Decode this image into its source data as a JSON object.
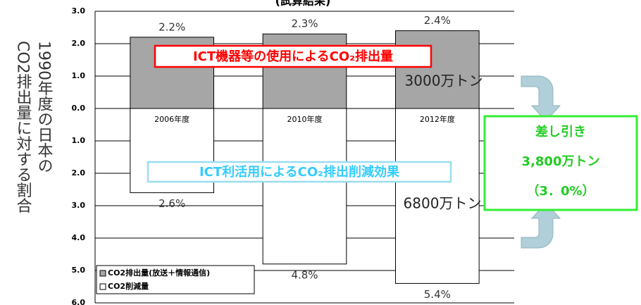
{
  "chart_data": {
    "type": "bar",
    "title": "(試算結果)",
    "y_label": [
      "1990年度の日本の",
      "CO2排出量に対する割合"
    ],
    "categories": [
      "2006年度",
      "2010年度",
      "2012年度"
    ],
    "series": [
      {
        "name": "CO2排出量(放送＋情報通信)",
        "color": "#a6a6a6",
        "values": [
          2.2,
          2.3,
          2.4
        ],
        "value_labels": [
          "2.2%",
          "2.3%",
          "2.4%"
        ]
      },
      {
        "name": "CO2削減量",
        "color": "#ffffff",
        "values": [
          -2.6,
          -4.8,
          -5.4
        ],
        "value_labels": [
          "2.6%",
          "4.8%",
          "5.4%"
        ]
      }
    ],
    "ylim": [
      -6,
      3
    ],
    "yticks": [
      {
        "value": 3,
        "label": "3.0"
      },
      {
        "value": 2,
        "label": "2.0"
      },
      {
        "value": 1,
        "label": "1.0"
      },
      {
        "value": 0,
        "label": "0.0"
      },
      {
        "value": -1,
        "label": "1.0"
      },
      {
        "value": -2,
        "label": "2.0"
      },
      {
        "value": -3,
        "label": "3.0"
      },
      {
        "value": -4,
        "label": "4.0"
      },
      {
        "value": -5,
        "label": "5.0"
      },
      {
        "value": -6,
        "label": "6.0"
      }
    ],
    "grid": true,
    "annotations": {
      "emission_label": "ICT機器等の使用によるCO₂排出量",
      "reduction_label": "ICT利活用によるCO₂排出削減効果",
      "emission_total": "3000万トン",
      "reduction_total": "6800万トン",
      "net": [
        "差し引き",
        "3,800万トン",
        "（3．0%）"
      ]
    }
  }
}
